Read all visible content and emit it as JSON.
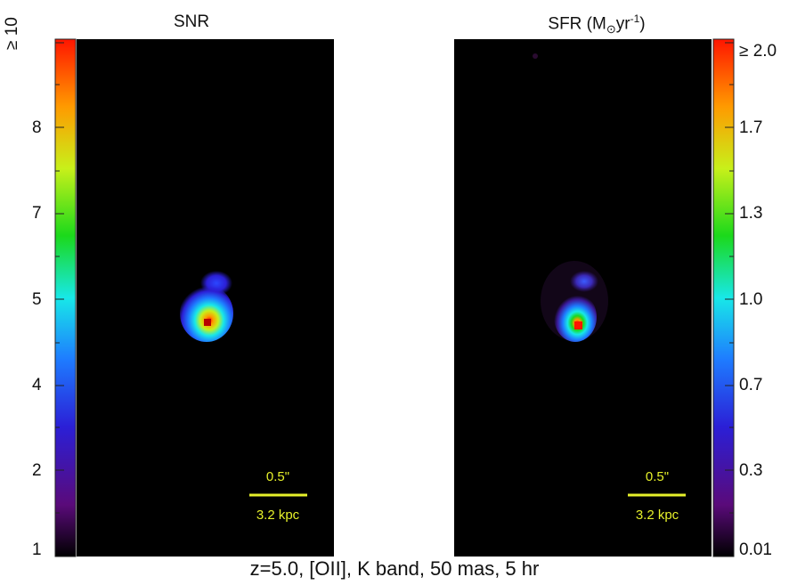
{
  "panels": {
    "left": {
      "title": "SNR",
      "colorbar_ticks": [
        "≥ 10",
        "8",
        "7",
        "5",
        "4",
        "2",
        "1"
      ],
      "scale_bar": {
        "angular": "0.5\"",
        "physical": "3.2 kpc"
      }
    },
    "right": {
      "title_main": "SFR (M",
      "title_sub": "⊙",
      "title_unit": "yr",
      "title_sup": "-1",
      "title_close": ")",
      "colorbar_ticks": [
        "≥ 2.0",
        "1.7",
        "1.3",
        "1.0",
        "0.7",
        "0.3",
        "0.01"
      ],
      "scale_bar": {
        "angular": "0.5\"",
        "physical": "3.2 kpc"
      }
    }
  },
  "caption": "z=5.0, [OII], K band, 50 mas, 5 hr",
  "colors": {
    "background": "#000000",
    "scale_bar": "#e6f02a",
    "colormap": [
      "#000000",
      "#5a0a7a",
      "#2b1fd6",
      "#1e7bff",
      "#18e8e8",
      "#1bd91b",
      "#c8f01a",
      "#ff9a00",
      "#ff1500"
    ]
  }
}
